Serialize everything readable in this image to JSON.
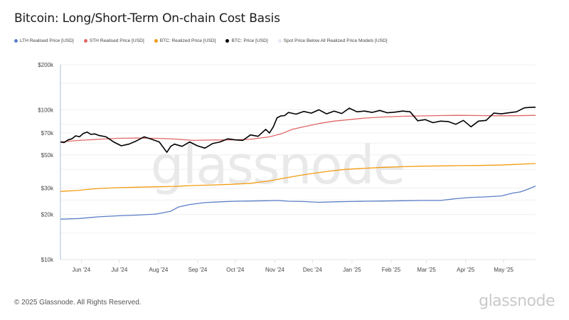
{
  "title": "Bitcoin: Long/Short-Term On-chain Cost Basis",
  "legend": [
    {
      "label": "LTH Realised Price [USD]",
      "color": "#5b7fc7"
    },
    {
      "label": "STH Realised Price [USD]",
      "color": "#e06666"
    },
    {
      "label": "BTC: Realized Price [USD]",
      "color": "#f39c12"
    },
    {
      "label": "BTC: Price [USD]",
      "color": "#000000"
    },
    {
      "label": "Spot Price Below All Realized Price Models [USD]",
      "color": "#e8e6f4"
    }
  ],
  "watermark": "glassnode",
  "footer": {
    "copyright": "© 2025 Glassnode. All Rights Reserved.",
    "brand": "glassnode"
  },
  "chart_data": {
    "type": "line",
    "title": "Bitcoin: Long/Short-Term On-chain Cost Basis",
    "xlabel": "",
    "ylabel": "",
    "yscale": "log",
    "ylim": [
      10000,
      200000
    ],
    "y_ticks": [
      {
        "value": 200000,
        "label": "$200k"
      },
      {
        "value": 100000,
        "label": "$100k"
      },
      {
        "value": 70000,
        "label": "$70k"
      },
      {
        "value": 50000,
        "label": "$50k"
      },
      {
        "value": 30000,
        "label": "$30k"
      },
      {
        "value": 20000,
        "label": "$20k"
      },
      {
        "value": 10000,
        "label": "$10k"
      }
    ],
    "x_range_months": [
      0,
      12.5
    ],
    "x_ticks": [
      {
        "value": 0.55,
        "label": "Jun '24"
      },
      {
        "value": 1.55,
        "label": "Jul '24"
      },
      {
        "value": 2.58,
        "label": "Aug '24"
      },
      {
        "value": 3.61,
        "label": "Sep '24"
      },
      {
        "value": 4.6,
        "label": "Oct '24"
      },
      {
        "value": 5.64,
        "label": "Nov '24"
      },
      {
        "value": 6.63,
        "label": "Dec '24"
      },
      {
        "value": 7.67,
        "label": "Jan '25"
      },
      {
        "value": 8.7,
        "label": "Feb '25"
      },
      {
        "value": 9.63,
        "label": "Mar '25"
      },
      {
        "value": 10.66,
        "label": "Apr '25"
      },
      {
        "value": 11.66,
        "label": "May '25"
      }
    ],
    "grid": true,
    "series": [
      {
        "name": "LTH Realised Price [USD]",
        "color": "#5b7fc7",
        "x": [
          0,
          0.5,
          1,
          1.5,
          2,
          2.5,
          2.9,
          3.1,
          3.4,
          3.8,
          4.2,
          4.6,
          5.0,
          5.4,
          5.7,
          6.0,
          6.4,
          6.8,
          7.2,
          7.6,
          8.0,
          8.5,
          9.0,
          9.5,
          10.0,
          10.4,
          10.8,
          11.2,
          11.6,
          11.9,
          12.1,
          12.3,
          12.5
        ],
        "y": [
          18600,
          18800,
          19300,
          19600,
          19800,
          20100,
          21000,
          22400,
          23300,
          24000,
          24300,
          24500,
          24600,
          24700,
          24800,
          24500,
          24400,
          24100,
          24300,
          24400,
          24500,
          24600,
          24700,
          24800,
          24800,
          25500,
          26000,
          26200,
          26600,
          27800,
          28300,
          29500,
          31000
        ]
      },
      {
        "name": "STH Realised Price [USD]",
        "color": "#e06666",
        "x": [
          0,
          0.5,
          1,
          1.5,
          2,
          2.5,
          3,
          3.5,
          4,
          4.5,
          5,
          5.5,
          5.8,
          6.1,
          6.4,
          6.8,
          7.2,
          7.6,
          8.0,
          8.5,
          9.0,
          9.5,
          10.0,
          10.5,
          11.0,
          11.5,
          12.0,
          12.5
        ],
        "y": [
          61000,
          62500,
          63500,
          64500,
          64800,
          64500,
          63800,
          62500,
          62800,
          63000,
          63500,
          66000,
          69000,
          74000,
          77000,
          81000,
          84000,
          86000,
          88000,
          89500,
          90500,
          91000,
          91500,
          91800,
          91500,
          91200,
          91300,
          91800
        ]
      },
      {
        "name": "BTC: Realized Price [USD]",
        "color": "#f39c12",
        "x": [
          0,
          0.5,
          0.7,
          1,
          1.5,
          2,
          2.5,
          3,
          3.5,
          4,
          4.5,
          5,
          5.5,
          5.9,
          6.3,
          6.7,
          7.1,
          7.5,
          8.0,
          8.5,
          9.0,
          9.5,
          10.0,
          10.5,
          11.0,
          11.5,
          12.0,
          12.5
        ],
        "y": [
          28500,
          29000,
          29400,
          29800,
          30200,
          30400,
          30600,
          30800,
          31200,
          31500,
          31800,
          32300,
          33500,
          35000,
          36500,
          37800,
          39000,
          40000,
          40700,
          41300,
          41700,
          42000,
          42200,
          42400,
          42500,
          42700,
          43200,
          43800
        ]
      },
      {
        "name": "BTC: Price [USD]",
        "color": "#000000",
        "x": [
          0,
          0.1,
          0.2,
          0.3,
          0.4,
          0.5,
          0.6,
          0.7,
          0.8,
          0.9,
          1.0,
          1.2,
          1.4,
          1.6,
          1.8,
          2.0,
          2.2,
          2.4,
          2.6,
          2.8,
          2.9,
          3.0,
          3.2,
          3.4,
          3.6,
          3.8,
          4.0,
          4.2,
          4.4,
          4.6,
          4.8,
          5.0,
          5.2,
          5.4,
          5.5,
          5.6,
          5.7,
          5.8,
          5.9,
          6.0,
          6.2,
          6.4,
          6.6,
          6.8,
          7.0,
          7.2,
          7.4,
          7.6,
          7.8,
          8.0,
          8.2,
          8.4,
          8.6,
          8.8,
          9.0,
          9.2,
          9.4,
          9.6,
          9.8,
          10.0,
          10.2,
          10.4,
          10.6,
          10.8,
          11.0,
          11.2,
          11.4,
          11.6,
          11.8,
          12.0,
          12.2,
          12.4,
          12.5
        ],
        "y": [
          61000,
          60500,
          63000,
          64000,
          67000,
          66000,
          69500,
          71000,
          68500,
          69000,
          67500,
          66000,
          61000,
          57500,
          59000,
          62000,
          66000,
          63500,
          61000,
          52000,
          57000,
          59000,
          57000,
          61000,
          57500,
          55500,
          59500,
          61000,
          64000,
          63000,
          62500,
          68000,
          66500,
          74000,
          70000,
          77000,
          88500,
          91000,
          91500,
          96000,
          93500,
          97500,
          95000,
          100000,
          94000,
          98000,
          94500,
          102500,
          97000,
          98000,
          96000,
          99000,
          95500,
          96500,
          98000,
          97000,
          84500,
          86000,
          82000,
          84000,
          83500,
          80000,
          85000,
          77000,
          84000,
          85000,
          95000,
          94000,
          95500,
          97000,
          103000,
          104000,
          104000
        ]
      }
    ]
  }
}
